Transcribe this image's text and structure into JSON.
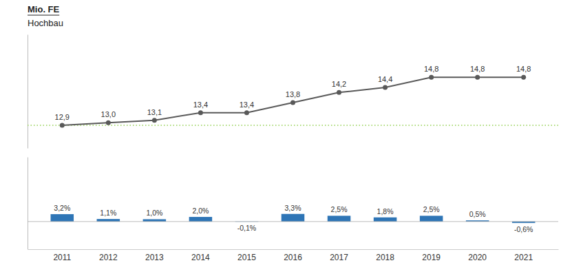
{
  "chart_data": [
    {
      "type": "line",
      "title": "Mio. FE",
      "subtitle": "Hochbau",
      "categories": [
        "2011",
        "2012",
        "2013",
        "2014",
        "2015",
        "2016",
        "2017",
        "2018",
        "2019",
        "2020",
        "2021"
      ],
      "values": [
        12.9,
        13.0,
        13.1,
        13.4,
        13.4,
        13.8,
        14.2,
        14.4,
        14.8,
        14.8,
        14.8
      ],
      "value_labels": [
        "12,9",
        "13,0",
        "13,1",
        "13,4",
        "13,4",
        "13,8",
        "14,2",
        "14,4",
        "14,8",
        "14,8",
        "14,8"
      ],
      "color": "#595959",
      "marker": "circle",
      "ylim": [
        12.0,
        16.5
      ],
      "tick_labels": false,
      "data_labels": true,
      "grid": false,
      "reference_line": {
        "value": 12.9,
        "color": "#92D050",
        "line_style": "dotted"
      }
    },
    {
      "type": "bar",
      "categories": [
        "2011",
        "2012",
        "2013",
        "2014",
        "2015",
        "2016",
        "2017",
        "2018",
        "2019",
        "2020",
        "2021"
      ],
      "values": [
        3.2,
        1.1,
        1.0,
        2.0,
        -0.1,
        3.3,
        2.5,
        1.8,
        2.5,
        0.5,
        -0.6
      ],
      "value_labels": [
        "3,2%",
        "1,1%",
        "1,0%",
        "2,0%",
        "-0,1%",
        "3,3%",
        "2,5%",
        "1,8%",
        "2,5%",
        "0,5%",
        "-0,6%"
      ],
      "color": "#2E75B6",
      "ylim": [
        -12,
        28
      ],
      "tick_labels": "x",
      "data_labels": true,
      "grid": false
    }
  ]
}
